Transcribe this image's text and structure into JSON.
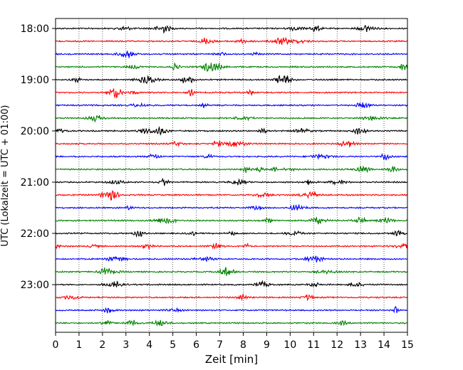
{
  "chart_data": {
    "type": "line",
    "title": "",
    "xlabel": "Zeit  [min]",
    "ylabel": "UTC (Lokalzeit = UTC + 01:00)",
    "xlim": [
      0,
      15
    ],
    "x_ticks": [
      "0",
      "1",
      "2",
      "3",
      "4",
      "5",
      "6",
      "7",
      "8",
      "9",
      "10",
      "11",
      "12",
      "13",
      "14",
      "15"
    ],
    "y_ticks": [
      "18:00",
      "19:00",
      "20:00",
      "21:00",
      "22:00",
      "23:00"
    ],
    "grid": "vertical dotted at each minute",
    "trace_interval_minutes": 15,
    "trace_start": "18:00",
    "trace_count": 24,
    "trace_colors": [
      "#000000",
      "#ff0000",
      "#0000ff",
      "#008000"
    ]
  }
}
